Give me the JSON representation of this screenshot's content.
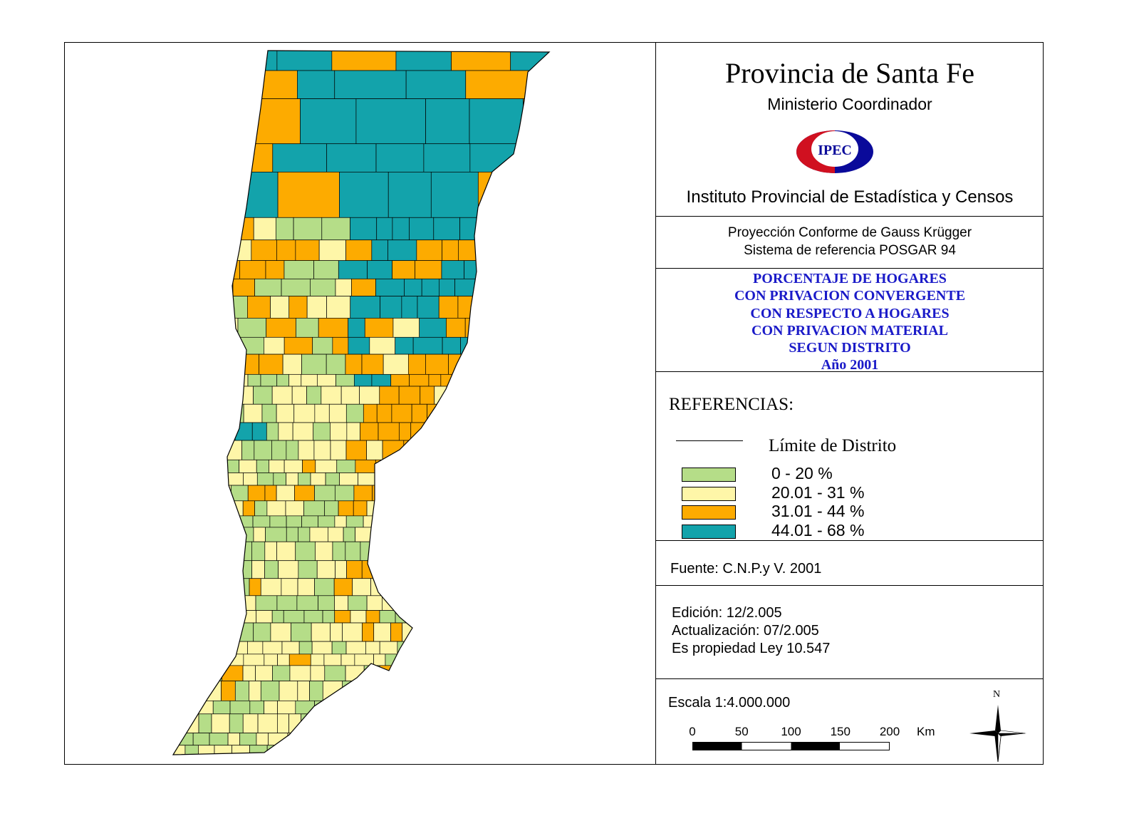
{
  "header": {
    "title": "Provincia de Santa Fe",
    "ministry": "Ministerio Coordinador",
    "logo_text": "IPEC",
    "institute": "Instituto Provincial de Estadística y Censos"
  },
  "projection": {
    "line1": "Proyección Conforme de Gauss Krügger",
    "line2": "Sistema de referencia POSGAR 94"
  },
  "map_title": [
    "PORCENTAJE DE HOGARES",
    "CON PRIVACION CONVERGENTE",
    "CON RESPECTO A HOGARES",
    "CON PRIVACION MATERIAL",
    "SEGUN DISTRITO",
    "Año 2001"
  ],
  "legend": {
    "heading": "REFERENCIAS:",
    "boundary_label": "Límite de Distrito",
    "classes": [
      {
        "label": "0 - 20 %",
        "color": "#b5dd88"
      },
      {
        "label": "20.01 - 31 %",
        "color": "#fef6a8"
      },
      {
        "label": "31.01 - 44 %",
        "color": "#fdab00"
      },
      {
        "label": "44.01 - 68 %",
        "color": "#13a3ab"
      }
    ]
  },
  "source": "Fuente:  C.N.P.y V. 2001",
  "edition": {
    "line1": "Edición:  12/2.005",
    "line2": "Actualización:  07/2.005",
    "line3": "Es propiedad Ley 10.547"
  },
  "scale": {
    "label": "Escala 1:4.000.000",
    "ticks": [
      "0",
      "50",
      "100",
      "150",
      "200"
    ],
    "unit": "Km"
  },
  "north": "N"
}
